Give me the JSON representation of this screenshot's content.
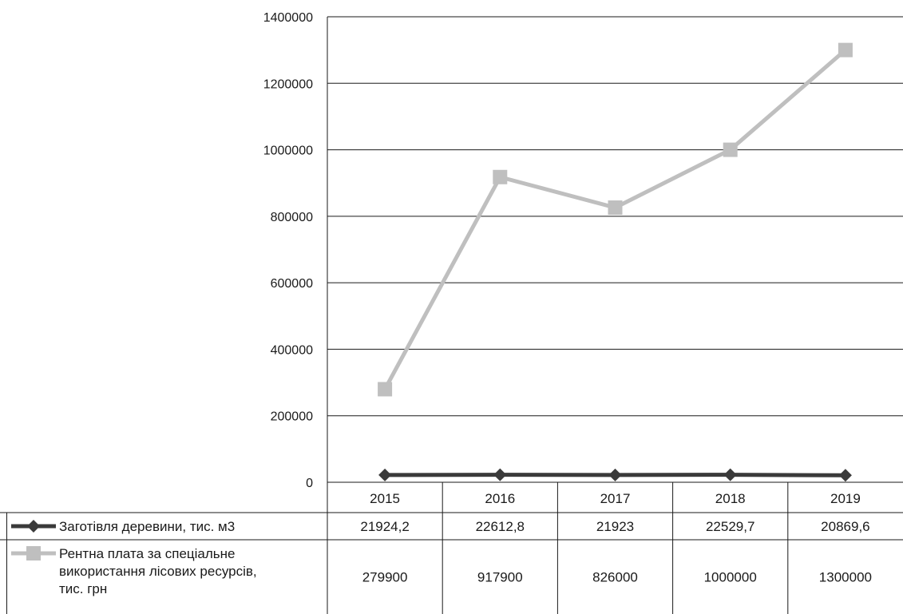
{
  "chart_data": {
    "type": "line",
    "categories": [
      "2015",
      "2016",
      "2017",
      "2018",
      "2019"
    ],
    "ylim": [
      0,
      1400000
    ],
    "yticks": [
      "0",
      "200000",
      "400000",
      "600000",
      "800000",
      "1000000",
      "1200000",
      "1400000"
    ],
    "grid": true,
    "legend_placement": "data-table-left",
    "series": [
      {
        "name": "Заготівля деревини, тис. м3",
        "name_lines": [
          "Заготівля деревини, тис. м3"
        ],
        "values": [
          21924.2,
          22612.8,
          21923,
          22529.7,
          20869.6
        ],
        "labels": [
          "21924,2",
          "22612,8",
          "21923",
          "22529,7",
          "20869,6"
        ],
        "color": "#3a3a3a",
        "marker": "diamond"
      },
      {
        "name": "Рентна плата за спеціальне використання лісових ресурсів, тис. грн",
        "name_lines": [
          "Рентна плата за спеціальне",
          "використання лісових ресурсів,",
          "тис. грн"
        ],
        "values": [
          279900,
          917900,
          826000,
          1000000,
          1300000
        ],
        "labels": [
          "279900",
          "917900",
          "826000",
          "1000000",
          "1300000"
        ],
        "color": "#bfbfbf",
        "marker": "square"
      }
    ]
  }
}
